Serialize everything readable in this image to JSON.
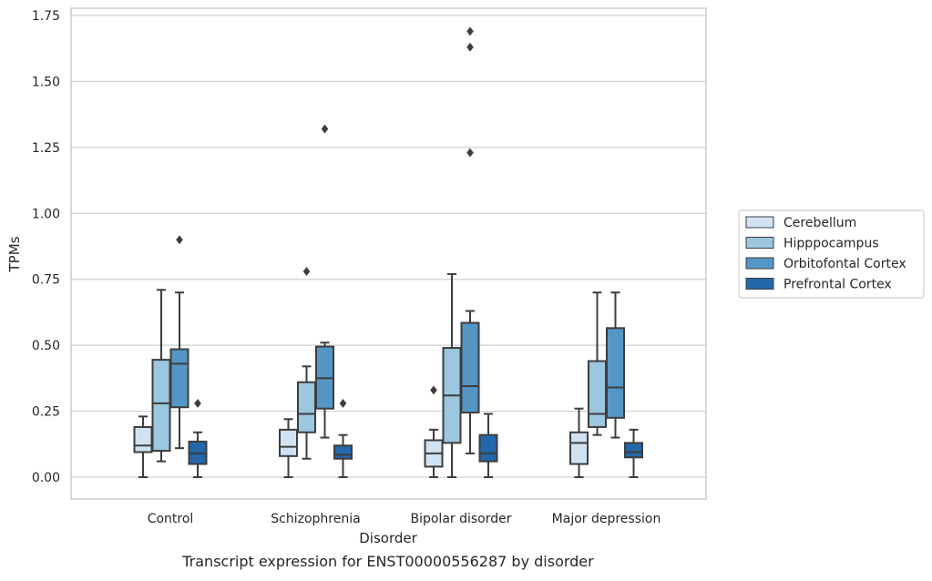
{
  "chart_data": {
    "type": "box",
    "xlabel": "Disorder",
    "ylabel": "TPMs",
    "caption": "Transcript expression for ENST00000556287 by disorder",
    "categories": [
      "Control",
      "Schizophrenia",
      "Bipolar disorder",
      "Major depression"
    ],
    "ylim": [
      -0.085,
      1.78
    ],
    "yticks": [
      0.0,
      0.25,
      0.5,
      0.75,
      1.0,
      1.25,
      1.5,
      1.75
    ],
    "ytick_labels": [
      "0.00",
      "0.25",
      "0.50",
      "0.75",
      "1.00",
      "1.25",
      "1.50",
      "1.75"
    ],
    "grid": "horizontal",
    "legend_position": "right",
    "colors": {
      "Cerebellum": "#d1e2f2",
      "Hipppocampus": "#9bc7df",
      "Orbitofontal Cortex": "#5496c5",
      "Prefrontal Cortex": "#2368aa",
      "box_edge": "#3d3d3d",
      "grid": "#d0d0d0",
      "frame": "#cccccc"
    },
    "series": [
      {
        "name": "Cerebellum",
        "boxes": [
          {
            "whislo": 0.0,
            "q1": 0.095,
            "med": 0.12,
            "q3": 0.19,
            "whishi": 0.23,
            "fliers": []
          },
          {
            "whislo": 0.0,
            "q1": 0.08,
            "med": 0.115,
            "q3": 0.18,
            "whishi": 0.22,
            "fliers": []
          },
          {
            "whislo": 0.0,
            "q1": 0.04,
            "med": 0.09,
            "q3": 0.14,
            "whishi": 0.18,
            "fliers": [
              0.33
            ]
          },
          {
            "whislo": 0.0,
            "q1": 0.05,
            "med": 0.13,
            "q3": 0.17,
            "whishi": 0.26,
            "fliers": []
          }
        ]
      },
      {
        "name": "Hipppocampus",
        "boxes": [
          {
            "whislo": 0.06,
            "q1": 0.1,
            "med": 0.28,
            "q3": 0.445,
            "whishi": 0.71,
            "fliers": []
          },
          {
            "whislo": 0.07,
            "q1": 0.17,
            "med": 0.24,
            "q3": 0.36,
            "whishi": 0.42,
            "fliers": [
              0.78
            ]
          },
          {
            "whislo": 0.0,
            "q1": 0.13,
            "med": 0.31,
            "q3": 0.49,
            "whishi": 0.77,
            "fliers": []
          },
          {
            "whislo": 0.16,
            "q1": 0.19,
            "med": 0.24,
            "q3": 0.44,
            "whishi": 0.7,
            "fliers": []
          }
        ]
      },
      {
        "name": "Orbitofontal Cortex",
        "boxes": [
          {
            "whislo": 0.11,
            "q1": 0.265,
            "med": 0.43,
            "q3": 0.485,
            "whishi": 0.7,
            "fliers": [
              0.9
            ]
          },
          {
            "whislo": 0.15,
            "q1": 0.26,
            "med": 0.375,
            "q3": 0.495,
            "whishi": 0.51,
            "fliers": [
              1.32
            ]
          },
          {
            "whislo": 0.09,
            "q1": 0.245,
            "med": 0.345,
            "q3": 0.585,
            "whishi": 0.63,
            "fliers": [
              1.23,
              1.63,
              1.69
            ]
          },
          {
            "whislo": 0.15,
            "q1": 0.225,
            "med": 0.34,
            "q3": 0.565,
            "whishi": 0.7,
            "fliers": []
          }
        ]
      },
      {
        "name": "Prefrontal Cortex",
        "boxes": [
          {
            "whislo": 0.0,
            "q1": 0.05,
            "med": 0.09,
            "q3": 0.135,
            "whishi": 0.17,
            "fliers": [
              0.28
            ]
          },
          {
            "whislo": 0.0,
            "q1": 0.07,
            "med": 0.085,
            "q3": 0.12,
            "whishi": 0.16,
            "fliers": [
              0.28
            ]
          },
          {
            "whislo": 0.0,
            "q1": 0.06,
            "med": 0.09,
            "q3": 0.16,
            "whishi": 0.24,
            "fliers": []
          },
          {
            "whislo": 0.0,
            "q1": 0.075,
            "med": 0.095,
            "q3": 0.13,
            "whishi": 0.18,
            "fliers": []
          }
        ]
      }
    ]
  }
}
